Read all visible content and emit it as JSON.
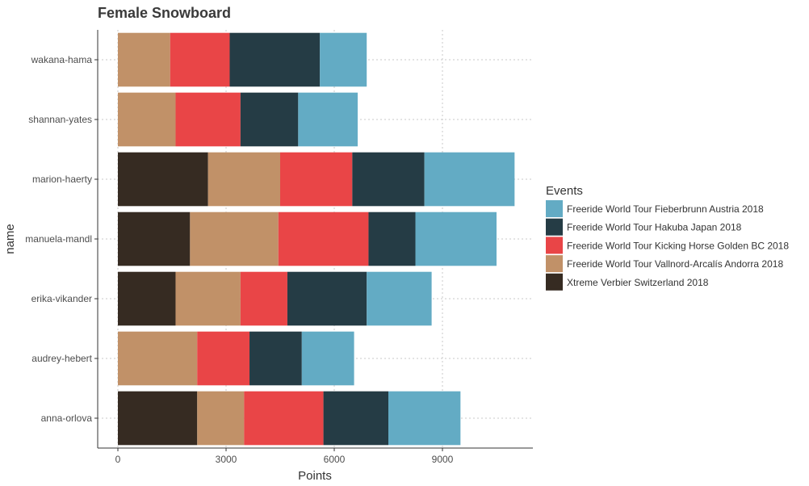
{
  "chart_data": {
    "type": "bar",
    "orientation": "horizontal",
    "stacked": true,
    "title": "Female Snowboard",
    "xlabel": "Points",
    "ylabel": "name",
    "xlim": [
      0,
      11300
    ],
    "xticks": [
      0,
      3000,
      6000,
      9000
    ],
    "xtick_labels": [
      "0",
      "3000",
      "6000",
      "9000"
    ],
    "grid": true,
    "legend_title": "Events",
    "legend_position": "right",
    "categories": [
      "anna-orlova",
      "audrey-hebert",
      "erika-vikander",
      "manuela-mandl",
      "marion-haerty",
      "shannan-yates",
      "wakana-hama"
    ],
    "series": [
      {
        "name": "Xtreme Verbier Switzerland 2018",
        "color": "#362b22",
        "values": [
          2200,
          0,
          1600,
          2000,
          2500,
          0,
          0
        ]
      },
      {
        "name": "Freeride World Tour Vallnord-Arcalís Andorra 2018",
        "color": "#c19168",
        "values": [
          1300,
          2200,
          1800,
          2450,
          2000,
          1600,
          1450
        ]
      },
      {
        "name": "Freeride World Tour Kicking Horse Golden BC 2018",
        "color": "#e94547",
        "values": [
          2200,
          1450,
          1300,
          2500,
          2000,
          1800,
          1650
        ]
      },
      {
        "name": "Freeride World Tour Hakuba Japan 2018",
        "color": "#253c45",
        "values": [
          1800,
          1450,
          2200,
          1300,
          2000,
          1600,
          2500
        ]
      },
      {
        "name": "Freeride World Tour Fieberbrunn Austria 2018",
        "color": "#63abc4",
        "values": [
          2000,
          1450,
          1800,
          2250,
          2500,
          1650,
          1300
        ]
      }
    ],
    "legend_order": [
      "Freeride World Tour Fieberbrunn Austria 2018",
      "Freeride World Tour Hakuba Japan 2018",
      "Freeride World Tour Kicking Horse Golden BC 2018",
      "Freeride World Tour Vallnord-Arcalís Andorra 2018",
      "Xtreme Verbier Switzerland 2018"
    ]
  }
}
